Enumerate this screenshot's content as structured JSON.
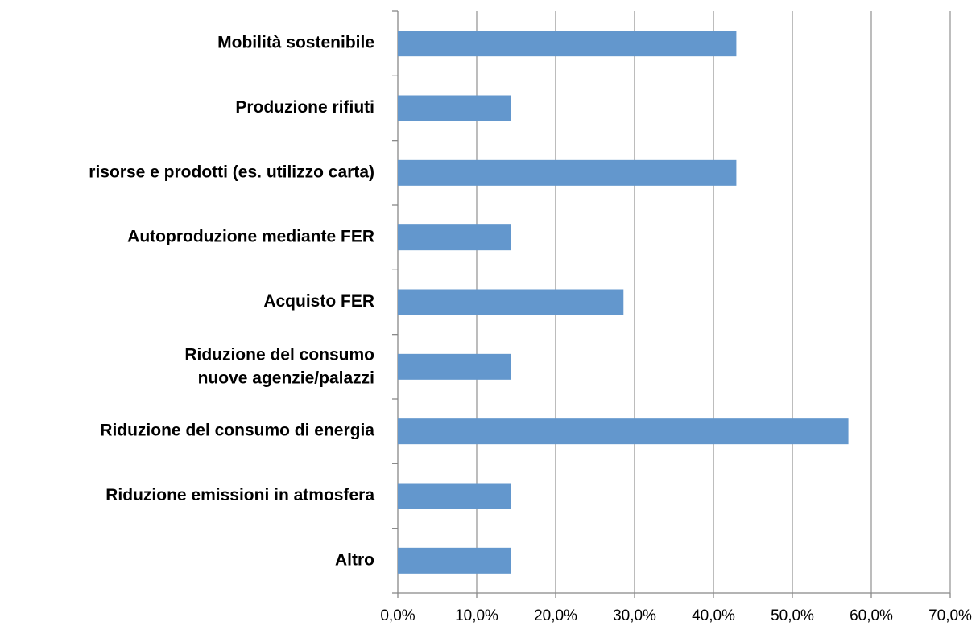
{
  "chart_data": {
    "type": "bar",
    "orientation": "horizontal",
    "categories": [
      "Mobilità sostenibile",
      "Produzione rifiuti",
      "risorse e prodotti (es. utilizzo carta)",
      "Autoproduzione mediante FER",
      "Acquisto FER",
      "Riduzione del consumo\nnuove agenzie/palazzi",
      "Riduzione del consumo di energia",
      "Riduzione emissioni in atmosfera",
      "Altro"
    ],
    "values": [
      42.9,
      14.3,
      42.9,
      14.3,
      28.6,
      14.3,
      57.1,
      14.3,
      14.3
    ],
    "color": "#6397cd",
    "xlim": [
      0,
      70
    ],
    "xticks": [
      {
        "value": 0,
        "label": "0,0%"
      },
      {
        "value": 10,
        "label": "10,0%"
      },
      {
        "value": 20,
        "label": "20,0%"
      },
      {
        "value": 30,
        "label": "30,0%"
      },
      {
        "value": 40,
        "label": "40,0%"
      },
      {
        "value": 50,
        "label": "50,0%"
      },
      {
        "value": 60,
        "label": "60,0%"
      },
      {
        "value": 70,
        "label": "70,0%"
      }
    ],
    "grid": true
  }
}
